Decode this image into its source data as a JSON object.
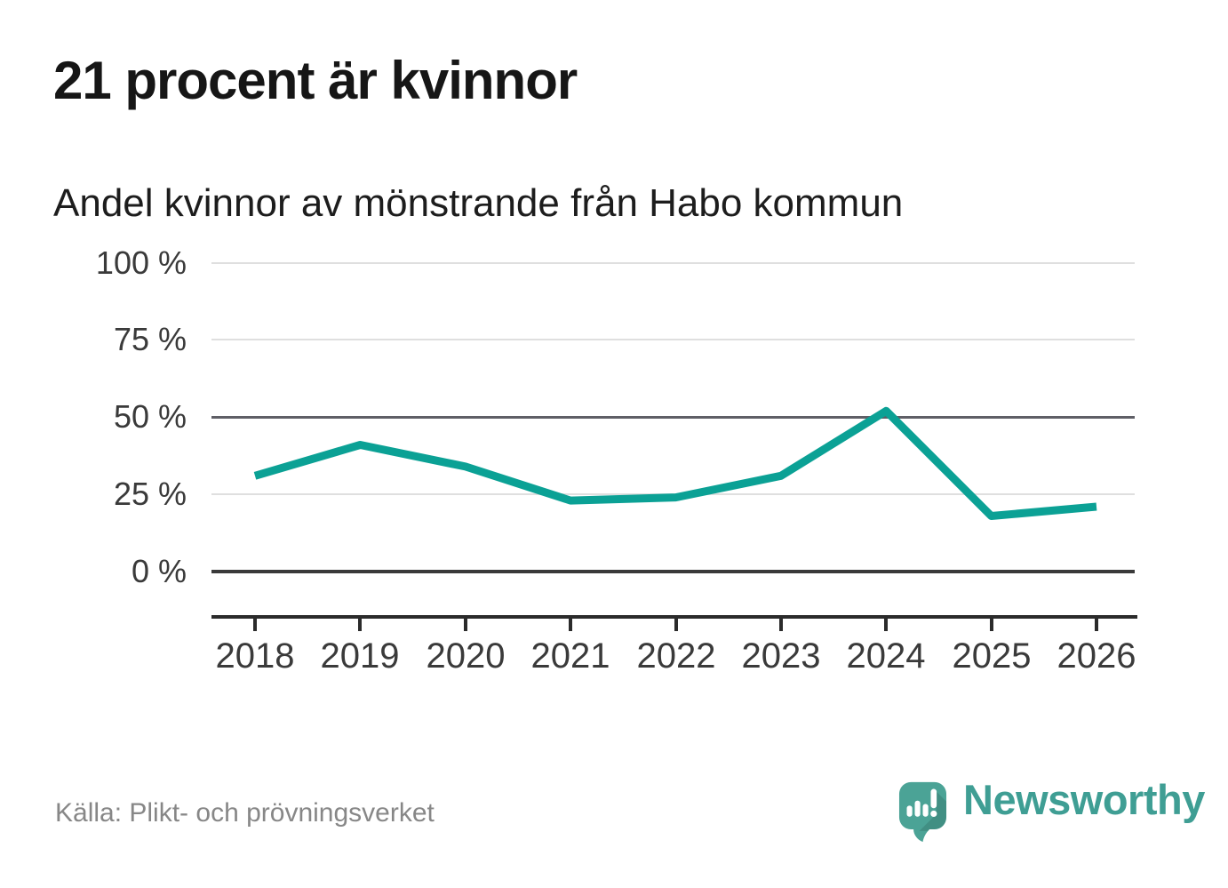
{
  "header": {
    "title": "21 procent är kvinnor",
    "subtitle": "Andel kvinnor av mönstrande från Habo kommun"
  },
  "footer": {
    "source": "Källa: Plikt- och prövningsverket",
    "brand": "Newsworthy",
    "logo_icon": "newsworthy-speech-bubble-bar-chart-icon"
  },
  "colors": {
    "line": "#0ba195",
    "grid_light": "#dfdfdf",
    "grid_mid": "#5f5f66",
    "grid_zero": "#3a3a3a",
    "axis": "#2b2b2b",
    "tick_label": "#3a3a3a",
    "title_text": "#161616",
    "source_text": "#878787",
    "brand_teal": "#3f9e94",
    "logo_bubble_teal": "#4ba396"
  },
  "chart_data": {
    "type": "line",
    "x": [
      2018,
      2019,
      2020,
      2021,
      2022,
      2023,
      2024,
      2025,
      2026
    ],
    "series": [
      {
        "name": "Andel kvinnor av mönstrande från Habo kommun",
        "values": [
          31,
          41,
          34,
          23,
          24,
          31,
          52,
          18,
          21
        ]
      }
    ],
    "title": "21 procent är kvinnor",
    "subtitle": "Andel kvinnor av mönstrande från Habo kommun",
    "xlabel": "",
    "ylabel": "",
    "ylim": [
      0,
      100
    ],
    "yticks": [
      0,
      25,
      50,
      75,
      100
    ],
    "ytick_suffix": " %",
    "grid": "horizontal",
    "legend": "none",
    "line_color": "#0ba195",
    "source": "Källa: Plikt- och prövningsverket"
  }
}
